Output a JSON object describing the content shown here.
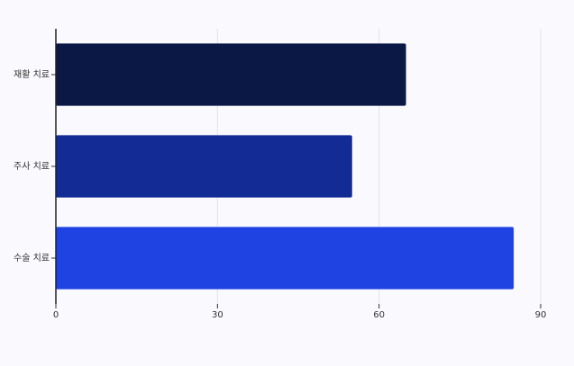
{
  "chart_data": {
    "type": "hbar",
    "categories": [
      "재활 치료",
      "주사 치료",
      "수술 치료"
    ],
    "values": [
      65,
      55,
      85
    ],
    "colors": [
      "#0b1745",
      "#132b94",
      "#1f43e3"
    ],
    "xlim": [
      0,
      90
    ],
    "xticks": [
      0,
      30,
      60,
      90
    ],
    "grid": true
  }
}
